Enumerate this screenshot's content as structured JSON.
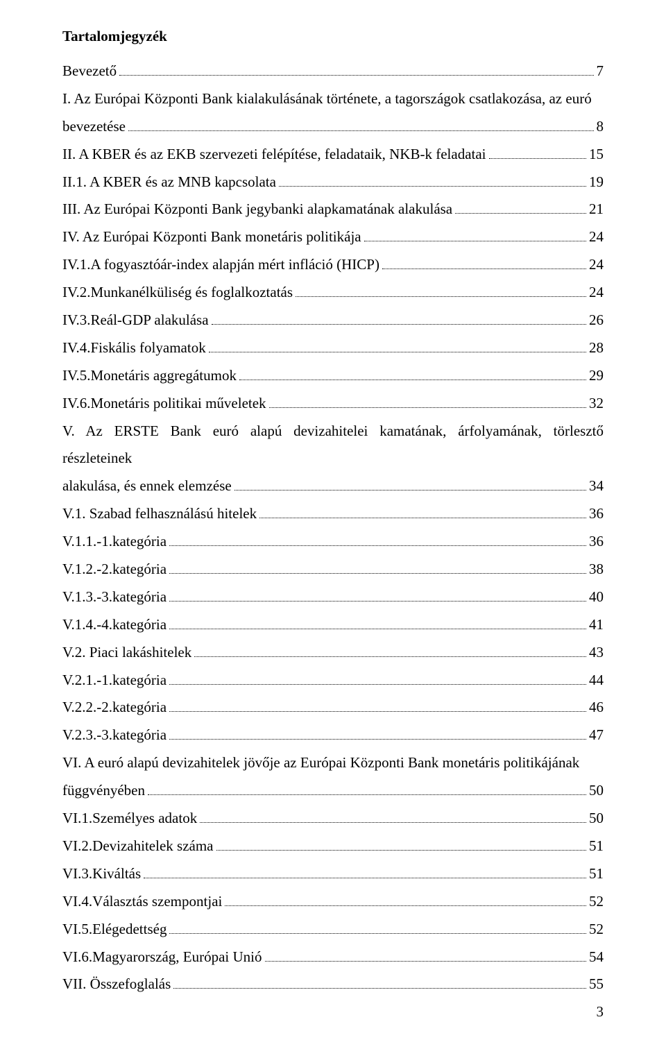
{
  "title": "Tartalomjegyzék",
  "page_number": "3",
  "font": {
    "family": "Times New Roman",
    "size_pt": 16,
    "color": "#000000"
  },
  "colors": {
    "background": "#ffffff",
    "text": "#000000",
    "leader": "#000000"
  },
  "entries": [
    {
      "label": "Bevezető",
      "page": "7"
    },
    {
      "label": "I. Az Európai Központi Bank kialakulásának története, a tagországok csatlakozása, az euró",
      "label2": "bevezetése",
      "page": "8",
      "multiline": true
    },
    {
      "label": "II. A KBER és az EKB  szervezeti felépítése, feladataik, NKB-k feladatai",
      "page": "15"
    },
    {
      "label": "II.1. A KBER és az MNB kapcsolata",
      "page": "19"
    },
    {
      "label": "III. Az Európai Központi Bank jegybanki alapkamatának alakulása",
      "page": "21"
    },
    {
      "label": "IV. Az Európai Központi Bank monetáris politikája",
      "page": "24"
    },
    {
      "label": "IV.1.A fogyasztóár-index alapján mért infláció (HICP)",
      "page": "24"
    },
    {
      "label": "IV.2.Munkanélküliség és foglalkoztatás",
      "page": "24"
    },
    {
      "label": "IV.3.Reál-GDP alakulása",
      "page": "26"
    },
    {
      "label": "IV.4.Fiskális folyamatok",
      "page": "28"
    },
    {
      "label": "IV.5.Monetáris aggregátumok",
      "page": "29"
    },
    {
      "label": "IV.6.Monetáris politikai műveletek",
      "page": "32"
    },
    {
      "label": "V. Az ERSTE Bank euró alapú devizahitelei kamatának, árfolyamának, törlesztő részleteinek",
      "label2": "alakulása, és ennek elemzése",
      "page": "34",
      "multiline": true
    },
    {
      "label": "V.1. Szabad felhasználású hitelek",
      "page": "36"
    },
    {
      "label": "V.1.1.-1.kategória",
      "page": "36"
    },
    {
      "label": "V.1.2.-2.kategória",
      "page": "38"
    },
    {
      "label": "V.1.3.-3.kategória",
      "page": "40"
    },
    {
      "label": "V.1.4.-4.kategória",
      "page": "41"
    },
    {
      "label": "V.2. Piaci lakáshitelek",
      "page": "43"
    },
    {
      "label": "V.2.1.-1.kategória",
      "page": "44"
    },
    {
      "label": "V.2.2.-2.kategória",
      "page": "46"
    },
    {
      "label": "V.2.3.-3.kategória",
      "page": "47"
    },
    {
      "label": "VI. A euró alapú devizahitelek jövője az Európai Központi Bank monetáris politikájának",
      "label2": "függvényében",
      "page": "50",
      "multiline": true
    },
    {
      "label": "VI.1.Személyes adatok",
      "page": "50"
    },
    {
      "label": "VI.2.Devizahitelek száma",
      "page": "51"
    },
    {
      "label": "VI.3.Kiváltás",
      "page": "51"
    },
    {
      "label": "VI.4.Választás szempontjai",
      "page": "52"
    },
    {
      "label": "VI.5.Elégedettség",
      "page": "52"
    },
    {
      "label": "VI.6.Magyarország, Európai Unió",
      "page": "54"
    },
    {
      "label": "VII. Összefoglalás",
      "page": "55"
    }
  ]
}
